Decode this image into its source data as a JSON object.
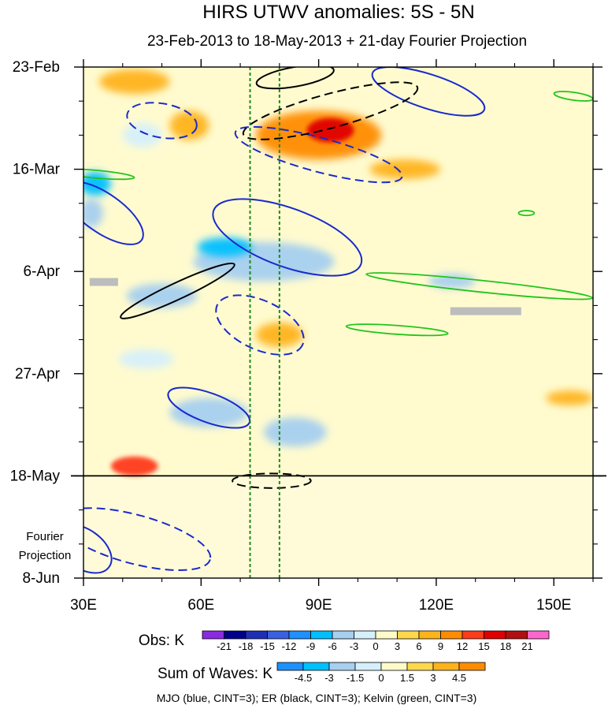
{
  "chart_data": {
    "type": "heatmap",
    "title": "HIRS UTWV anomalies: 5S - 5N",
    "subtitle": "23-Feb-2013 to 18-May-2013 + 21-day Fourier Projection",
    "x_axis": {
      "range": [
        30,
        160
      ],
      "ticks": [
        30,
        60,
        90,
        120,
        150
      ],
      "tick_labels": [
        "30E",
        "60E",
        "90E",
        "120E",
        "150E"
      ]
    },
    "y_axis": {
      "range_days": [
        0,
        105
      ],
      "ticks_days": [
        0,
        21,
        42,
        63,
        84,
        105
      ],
      "tick_labels": [
        "23-Feb",
        "16-Mar",
        "6-Apr",
        "27-Apr",
        "18-May",
        "8-Jun"
      ],
      "inverted": true
    },
    "projection_label": [
      "Fourier",
      "Projection"
    ],
    "observation_end_day": 84,
    "reference_lines_lon": [
      72.5,
      80
    ],
    "obs_colorbar": {
      "label": "Obs: K",
      "levels": [
        "-21",
        "-18",
        "-15",
        "-12",
        "-9",
        "-6",
        "-3",
        "0",
        "3",
        "6",
        "9",
        "12",
        "15",
        "18",
        "21"
      ],
      "colors": [
        "#8a2be2",
        "#00008b",
        "#1f2fb5",
        "#3a5fe0",
        "#1e90ff",
        "#00bfff",
        "#a6cff0",
        "#d6f0fb",
        "#fffbc8",
        "#ffd84a",
        "#ffb31a",
        "#ff8c00",
        "#ff3b1a",
        "#e00000",
        "#b01010",
        "#ff66cc"
      ]
    },
    "waves_colorbar": {
      "label": "Sum of Waves: K",
      "levels": [
        "-4.5",
        "-3",
        "-1.5",
        "0",
        "1.5",
        "3",
        "4.5"
      ],
      "colors": [
        "#1e90ff",
        "#00bfff",
        "#a6cff0",
        "#d6f0fb",
        "#fffbc8",
        "#ffd84a",
        "#ffb31a",
        "#ff8c00"
      ]
    },
    "footer": "MJO (blue, CINT=3); ER (black, CINT=3); Kelvin (green, CINT=3)",
    "anomaly_patches": [
      {
        "lon": 43,
        "day": 3,
        "rx": 9,
        "ry": 2.5,
        "value": 6
      },
      {
        "lon": 57,
        "day": 12,
        "rx": 5,
        "ry": 3,
        "value": 6
      },
      {
        "lon": 90,
        "day": 14,
        "rx": 16,
        "ry": 5,
        "value": 9
      },
      {
        "lon": 93,
        "day": 13,
        "rx": 6,
        "ry": 2.5,
        "value": 15
      },
      {
        "lon": 45,
        "day": 14,
        "rx": 5,
        "ry": 2.5,
        "value": -3
      },
      {
        "lon": 112,
        "day": 21,
        "rx": 9,
        "ry": 2,
        "value": 6
      },
      {
        "lon": 33,
        "day": 24,
        "rx": 4,
        "ry": 2.5,
        "value": -9
      },
      {
        "lon": 32,
        "day": 30,
        "rx": 3,
        "ry": 3,
        "value": -6
      },
      {
        "lon": 76,
        "day": 40,
        "rx": 18,
        "ry": 4,
        "value": -6
      },
      {
        "lon": 66,
        "day": 37,
        "rx": 7,
        "ry": 2,
        "value": -9
      },
      {
        "lon": 124,
        "day": 44,
        "rx": 6,
        "ry": 1.5,
        "value": -6
      },
      {
        "lon": 50,
        "day": 47,
        "rx": 9,
        "ry": 2.5,
        "value": -6
      },
      {
        "lon": 80,
        "day": 55,
        "rx": 6,
        "ry": 2.5,
        "value": 6
      },
      {
        "lon": 46,
        "day": 60,
        "rx": 7,
        "ry": 2,
        "value": -3
      },
      {
        "lon": 154,
        "day": 68,
        "rx": 6,
        "ry": 1.5,
        "value": 6
      },
      {
        "lon": 62,
        "day": 71,
        "rx": 10,
        "ry": 3,
        "value": -6
      },
      {
        "lon": 84,
        "day": 75,
        "rx": 8,
        "ry": 3,
        "value": -6
      },
      {
        "lon": 43,
        "day": 82,
        "rx": 6,
        "ry": 2,
        "value": 12
      }
    ],
    "wave_contours": [
      {
        "wave": "MJO",
        "sign": "positive",
        "lon": 118,
        "day": 5,
        "rx": 15,
        "ry": 3.5,
        "angle": 18
      },
      {
        "wave": "MJO",
        "sign": "negative",
        "lon": 50,
        "day": 11,
        "rx": 9,
        "ry": 3.5,
        "angle": 10
      },
      {
        "wave": "MJO",
        "sign": "negative",
        "lon": 90,
        "day": 18,
        "rx": 22,
        "ry": 3.5,
        "angle": 15
      },
      {
        "wave": "ER",
        "sign": "negative",
        "lon": 93,
        "day": 9,
        "rx": 23,
        "ry": 3.5,
        "angle": -15
      },
      {
        "wave": "ER",
        "sign": "positive",
        "lon": 84,
        "day": 2,
        "rx": 10,
        "ry": 2,
        "angle": -10
      },
      {
        "wave": "MJO",
        "sign": "positive",
        "lon": 35,
        "day": 30,
        "rx": 12,
        "ry": 4,
        "angle": 35
      },
      {
        "wave": "MJO",
        "sign": "positive",
        "lon": 82,
        "day": 35,
        "rx": 20,
        "ry": 6,
        "angle": 20
      },
      {
        "wave": "ER",
        "sign": "positive",
        "lon": 54,
        "day": 46,
        "rx": 16,
        "ry": 1.7,
        "angle": -25
      },
      {
        "wave": "MJO",
        "sign": "negative",
        "lon": 75,
        "day": 53,
        "rx": 12,
        "ry": 5,
        "angle": 25
      },
      {
        "wave": "MJO",
        "sign": "positive",
        "lon": 62,
        "day": 70,
        "rx": 11,
        "ry": 3,
        "angle": 20
      },
      {
        "wave": "MJO",
        "sign": "negative",
        "lon": 43,
        "day": 97,
        "rx": 20,
        "ry": 5,
        "angle": 15
      },
      {
        "wave": "ER",
        "sign": "negative",
        "lon": 78,
        "day": 85,
        "rx": 10,
        "ry": 1.5,
        "angle": 0
      },
      {
        "wave": "MJO",
        "sign": "positive",
        "lon": 30,
        "day": 99,
        "rx": 8,
        "ry": 4,
        "angle": 35
      }
    ],
    "kelvin_contours": [
      {
        "lon": 33,
        "day": 22,
        "rx": 10,
        "ry": 0.8,
        "angle": 5
      },
      {
        "lon": 131,
        "day": 45,
        "rx": 29,
        "ry": 1.2,
        "angle": 6
      },
      {
        "lon": 110,
        "day": 54,
        "rx": 13,
        "ry": 0.9,
        "angle": 4
      },
      {
        "lon": 155,
        "day": 6,
        "rx": 5,
        "ry": 0.8,
        "angle": 8
      },
      {
        "lon": 143,
        "day": 30,
        "rx": 2,
        "ry": 0.5,
        "angle": 0
      }
    ],
    "missing_data": [
      {
        "lon": 34,
        "day": 44
      },
      {
        "lon": 126,
        "day": 50
      }
    ]
  }
}
